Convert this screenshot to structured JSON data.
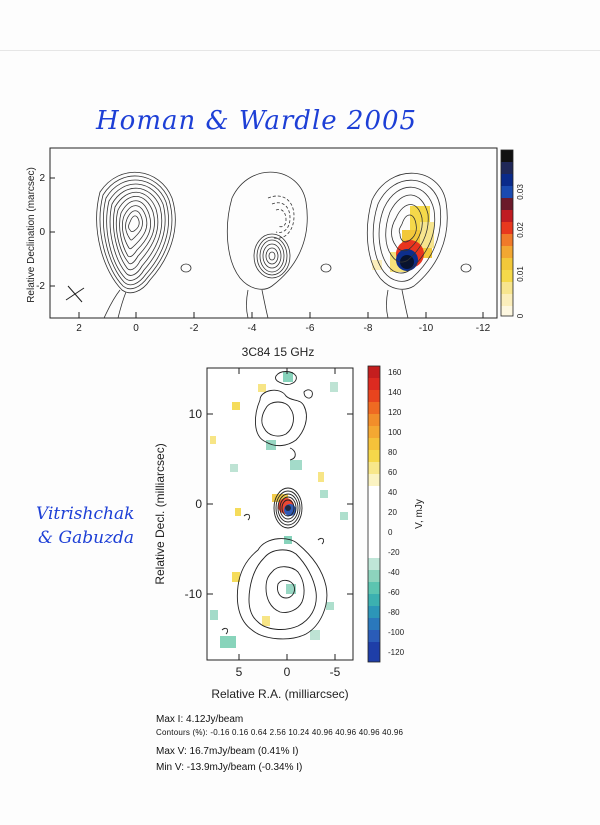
{
  "handwriting": {
    "title": "Homan & Wardle 2005",
    "note_line1": "Vitrishchak",
    "note_line2": "& Gabuzda"
  },
  "top_figure": {
    "ylabel": "Relative Declination (marcsec)",
    "y_ticks": [
      "2",
      "0",
      "-2"
    ],
    "x_ticks": [
      "2",
      "0",
      "-2",
      "-4",
      "-6",
      "-8",
      "-10",
      "-12"
    ],
    "colorbar_ticks": [
      "0.03",
      "0.02",
      "0.01",
      "0"
    ]
  },
  "main_figure": {
    "title": "3C84   15 GHz",
    "xlabel": "Relative R.A. (milliarcsec)",
    "ylabel": "Relative Decl. (milliarcsec)",
    "x_ticks": [
      "5",
      "0",
      "-5"
    ],
    "y_ticks": [
      "10",
      "0",
      "-10"
    ],
    "colorbar_label": "V, mJy",
    "colorbar_ticks": [
      "160",
      "140",
      "120",
      "100",
      "80",
      "60",
      "40",
      "20",
      "0",
      "-20",
      "-40",
      "-60",
      "-80",
      "-100",
      "-120"
    ]
  },
  "caption": {
    "max_i": "Max I: 4.12Jy/beam",
    "contours": "Contours (%): -0.16 0.16 0.64 2.56 10.24 40.96 40.96 40.96 40.96",
    "max_v": "Max V: 16.7mJy/beam (0.41% I)",
    "min_v": "Min V: -13.9mJy/beam (-0.34% I)"
  }
}
